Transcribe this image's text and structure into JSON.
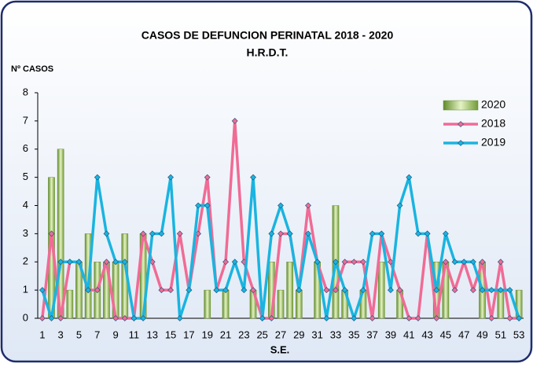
{
  "chart_data": {
    "type": "combo",
    "title": "CASOS DE DEFUNCION PERINATAL 2018 - 2020",
    "subtitle": "H.R.D.T.",
    "y_label": "Nº CASOS",
    "x_label": "S.E.",
    "categories": [
      1,
      null,
      3,
      null,
      5,
      null,
      7,
      null,
      9,
      null,
      11,
      null,
      13,
      null,
      15,
      null,
      17,
      null,
      19,
      null,
      21,
      null,
      23,
      null,
      25,
      null,
      27,
      null,
      29,
      null,
      31,
      null,
      33,
      null,
      35,
      null,
      37,
      null,
      39,
      null,
      41,
      null,
      43,
      null,
      45,
      null,
      47,
      null,
      49,
      null,
      51,
      null,
      53
    ],
    "ylim": [
      0,
      8
    ],
    "yticks": [
      0,
      1,
      2,
      3,
      4,
      5,
      6,
      7,
      8
    ],
    "legend": "top-right",
    "series": [
      {
        "name": "2020",
        "type": "bar",
        "color": "#8fb84a",
        "values": [
          0,
          5,
          6,
          1,
          2,
          3,
          2,
          2,
          2,
          3,
          0,
          3,
          0,
          0,
          0,
          0,
          0,
          0,
          1,
          0,
          1,
          0,
          0,
          1,
          0,
          2,
          1,
          2,
          1,
          0,
          2,
          0,
          4,
          1,
          0,
          1,
          0,
          2,
          0,
          1,
          0,
          0,
          0,
          2,
          2,
          0,
          0,
          0,
          2,
          0,
          1,
          0,
          1
        ]
      },
      {
        "name": "2018",
        "type": "line",
        "color": "#f06b95",
        "values": [
          0,
          3,
          0,
          2,
          2,
          1,
          1,
          2,
          0,
          0,
          0,
          3,
          2,
          1,
          1,
          3,
          1,
          3,
          5,
          1,
          2,
          7,
          2,
          1,
          0,
          0,
          3,
          3,
          1,
          4,
          2,
          1,
          1,
          2,
          2,
          2,
          0,
          3,
          2,
          1,
          0,
          0,
          3,
          0,
          2,
          1,
          2,
          1,
          2,
          0,
          2,
          0,
          0
        ]
      },
      {
        "name": "2019",
        "type": "line",
        "color": "#1ab4e0",
        "values": [
          1,
          0,
          2,
          2,
          2,
          1,
          5,
          3,
          2,
          2,
          0,
          0,
          3,
          3,
          5,
          0,
          1,
          4,
          4,
          1,
          1,
          2,
          1,
          5,
          0,
          3,
          4,
          3,
          1,
          3,
          2,
          0,
          2,
          1,
          0,
          1,
          3,
          3,
          1,
          4,
          5,
          3,
          3,
          1,
          3,
          2,
          2,
          2,
          1,
          1,
          1,
          1,
          0
        ]
      }
    ]
  }
}
